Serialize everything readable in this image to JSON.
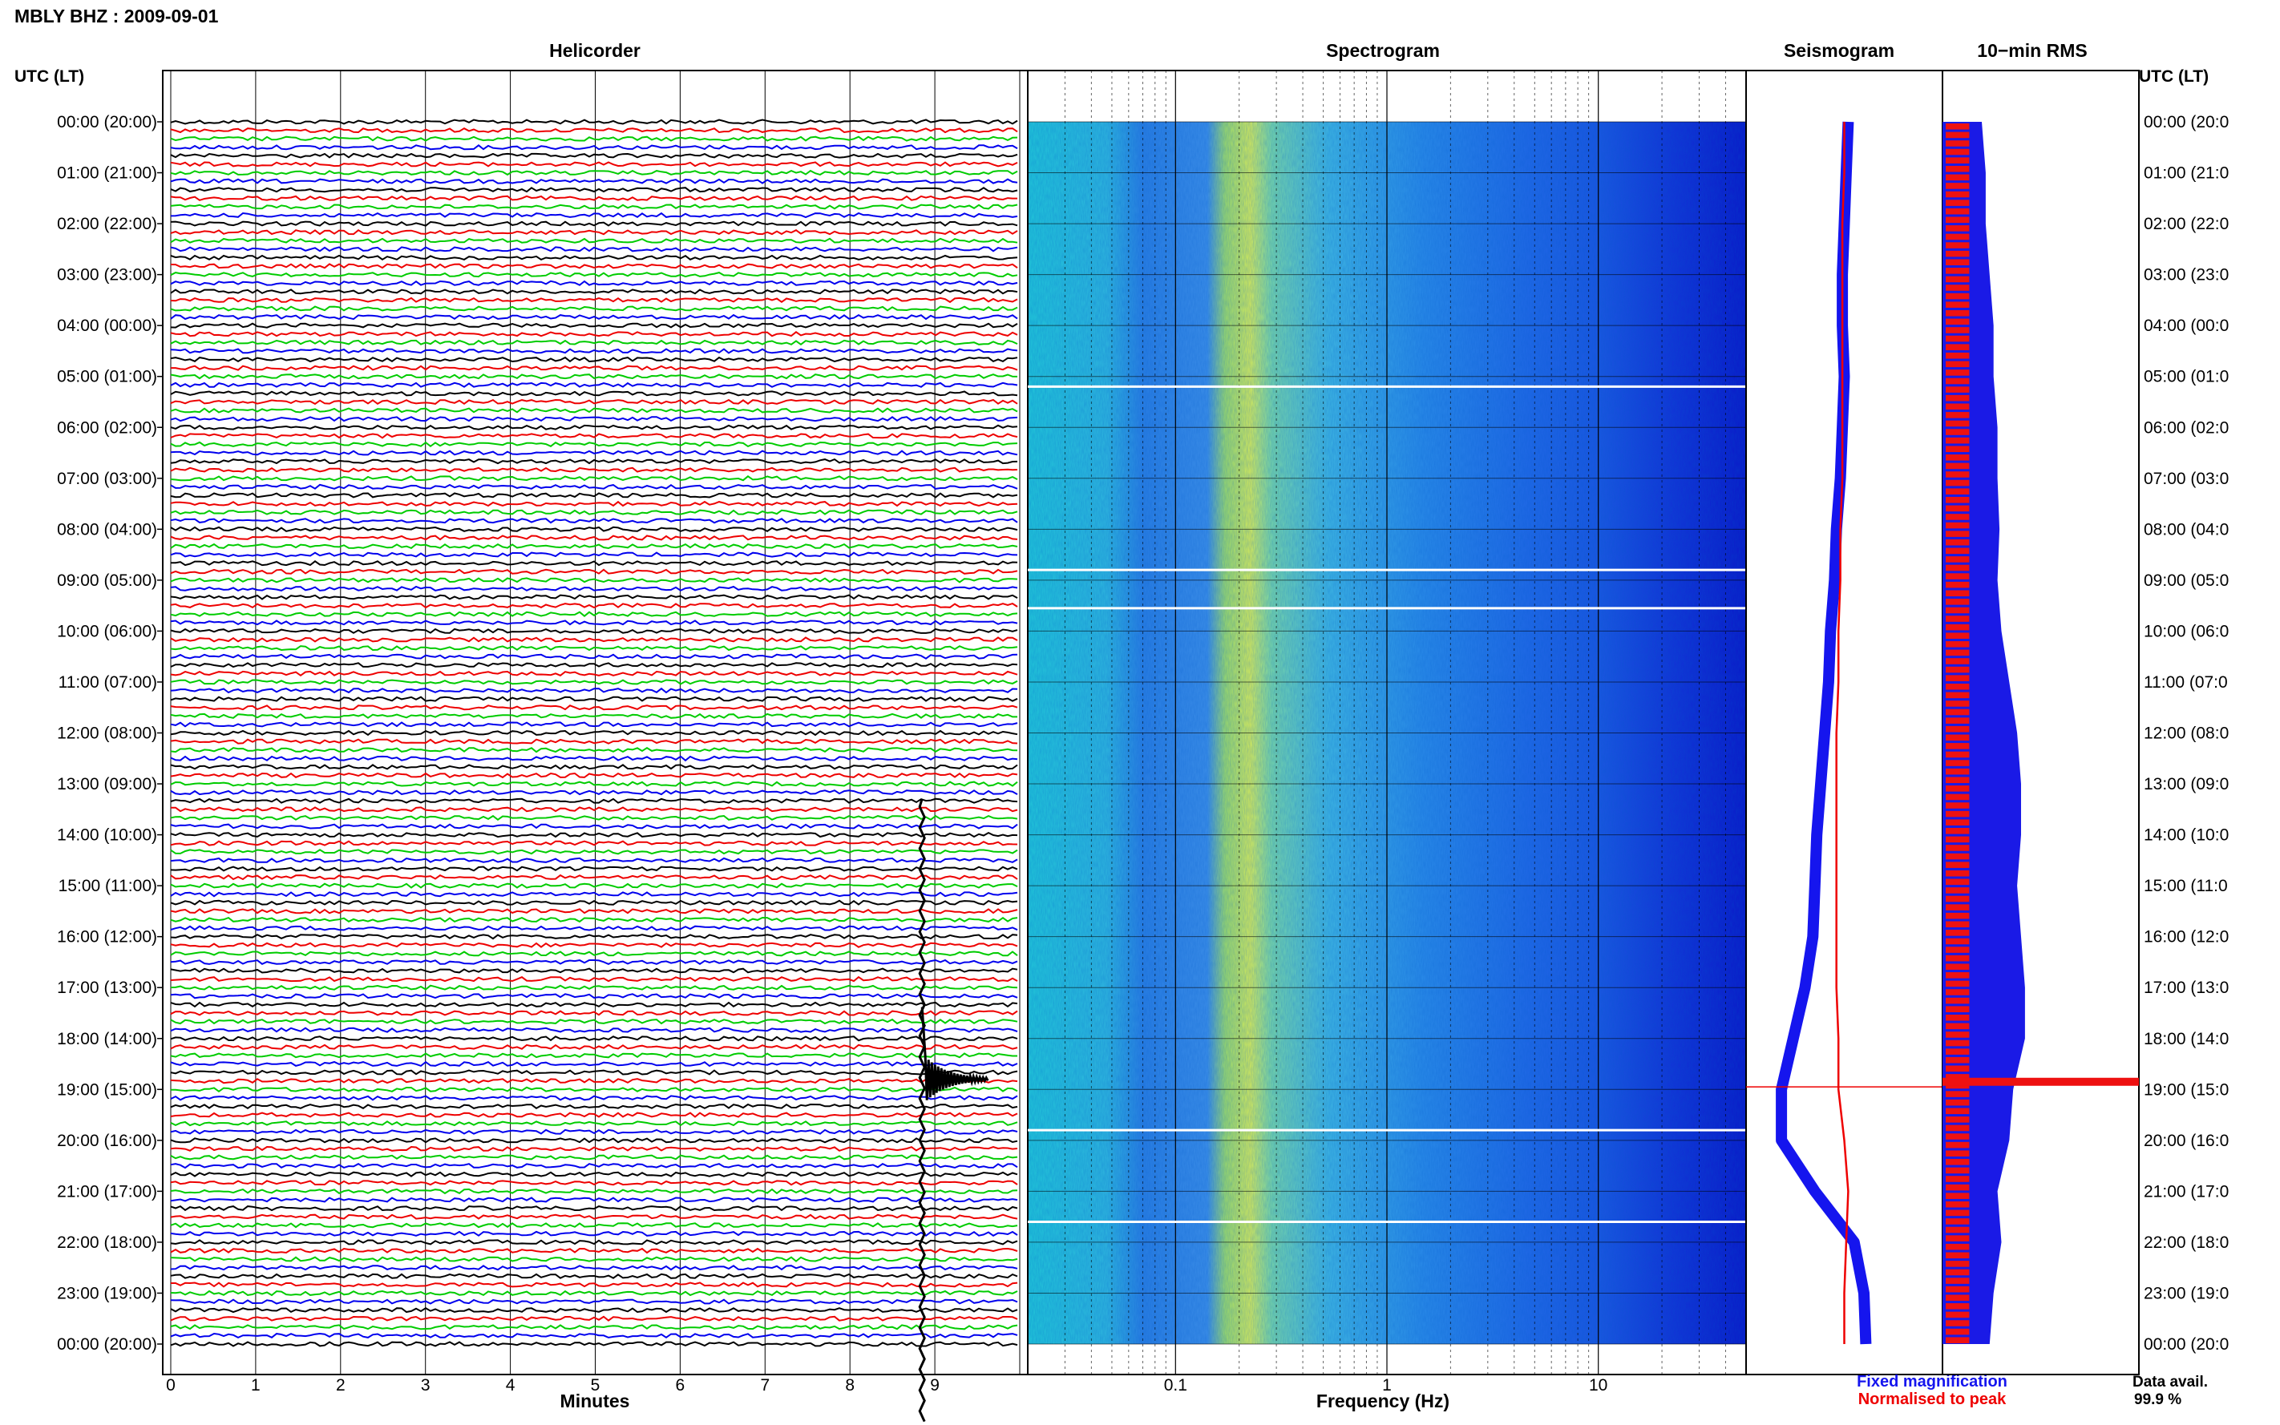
{
  "title": "MBLY BHZ : 2009-09-01",
  "utc_header": "UTC (LT)",
  "panels": {
    "helicorder": "Helicorder",
    "spectrogram": "Spectrogram",
    "seismogram": "Seismogram",
    "rms": "10−min RMS"
  },
  "time_labels": [
    "00:00 (20:00)",
    "01:00 (21:00)",
    "02:00 (22:00)",
    "03:00 (23:00)",
    "04:00 (00:00)",
    "05:00 (01:00)",
    "06:00 (02:00)",
    "07:00 (03:00)",
    "08:00 (04:00)",
    "09:00 (05:00)",
    "10:00 (06:00)",
    "11:00 (07:00)",
    "12:00 (08:00)",
    "13:00 (09:00)",
    "14:00 (10:00)",
    "15:00 (11:00)",
    "16:00 (12:00)",
    "17:00 (13:00)",
    "18:00 (14:00)",
    "19:00 (15:00)",
    "20:00 (16:00)",
    "21:00 (17:00)",
    "22:00 (18:00)",
    "23:00 (19:00)",
    "00:00 (20:00)"
  ],
  "right_time_labels": [
    "00:00 (20:0",
    "01:00 (21:0",
    "02:00 (22:0",
    "03:00 (23:0",
    "04:00 (00:0",
    "05:00 (01:0",
    "06:00 (02:0",
    "07:00 (03:0",
    "08:00 (04:0",
    "09:00 (05:0",
    "10:00 (06:0",
    "11:00 (07:0",
    "12:00 (08:0",
    "13:00 (09:0",
    "14:00 (10:0",
    "15:00 (11:0",
    "16:00 (12:0",
    "17:00 (13:0",
    "18:00 (14:0",
    "19:00 (15:0",
    "20:00 (16:0",
    "21:00 (17:0",
    "22:00 (18:0",
    "23:00 (19:0",
    "00:00 (20:0"
  ],
  "helicorder_xlabel": "Minutes",
  "spectrogram_xlabel": "Frequency (Hz)",
  "legend": {
    "fixed": "Fixed magnification",
    "normalised": "Normalised to peak",
    "data_avail_label": "Data avail.",
    "data_avail_value": "99.9 %"
  },
  "colors": {
    "trace_cycle": [
      "#000000",
      "#ee0000",
      "#00cc00",
      "#0000ee"
    ],
    "fixed": "#1515ee",
    "normalised": "#ee0000",
    "rms_bar": "#ee1111",
    "rms_fill": "#1a1ae6"
  },
  "chart_data": [
    {
      "type": "line",
      "name": "helicorder",
      "x_ticks": [
        "0",
        "1",
        "2",
        "3",
        "4",
        "5",
        "6",
        "7",
        "8",
        "9"
      ],
      "xlim": [
        0,
        10
      ],
      "traces_per_hour": 6,
      "hours": 24,
      "event": {
        "minute": 8.85,
        "hour": 18.8
      }
    },
    {
      "type": "heatmap",
      "name": "spectrogram",
      "x_scale": "log",
      "x_ticks": [
        "0.1",
        "1",
        "10"
      ],
      "xlim": [
        0.02,
        50
      ],
      "gaps_hour": [
        5.2,
        8.8,
        9.55,
        19.8,
        21.6
      ]
    },
    {
      "type": "line",
      "name": "seismogram",
      "hours": [
        0,
        1,
        2,
        3,
        4,
        5,
        6,
        7,
        8,
        9,
        10,
        11,
        12,
        13,
        14,
        15,
        16,
        17,
        18,
        19,
        20,
        21,
        22,
        23,
        24
      ],
      "fixed_magnification": [
        0.52,
        0.51,
        0.5,
        0.49,
        0.49,
        0.5,
        0.49,
        0.48,
        0.46,
        0.45,
        0.43,
        0.42,
        0.4,
        0.38,
        0.36,
        0.35,
        0.34,
        0.3,
        0.24,
        0.18,
        0.18,
        0.35,
        0.55,
        0.6,
        0.61
      ],
      "normalised_to_peak": [
        0.5,
        0.5,
        0.49,
        0.49,
        0.49,
        0.49,
        0.49,
        0.49,
        0.48,
        0.48,
        0.47,
        0.47,
        0.46,
        0.46,
        0.46,
        0.46,
        0.46,
        0.46,
        0.47,
        0.47,
        0.5,
        0.52,
        0.51,
        0.5,
        0.5
      ],
      "event_hour": 18.95
    },
    {
      "type": "bar",
      "name": "10-min RMS",
      "hours": [
        0,
        1,
        2,
        3,
        4,
        5,
        6,
        7,
        8,
        9,
        10,
        11,
        12,
        13,
        14,
        15,
        16,
        17,
        18,
        19,
        20,
        21,
        22,
        23,
        24
      ],
      "rms_values": [
        0.2,
        0.22,
        0.22,
        0.24,
        0.26,
        0.26,
        0.28,
        0.28,
        0.29,
        0.28,
        0.3,
        0.34,
        0.38,
        0.4,
        0.4,
        0.38,
        0.4,
        0.42,
        0.42,
        0.36,
        0.34,
        0.28,
        0.3,
        0.26,
        0.24
      ],
      "peak_hour": 18.85
    }
  ]
}
